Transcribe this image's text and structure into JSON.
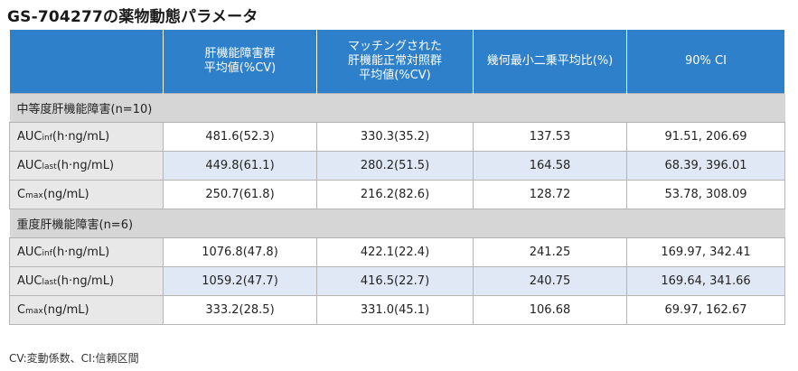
{
  "title": "GS-704277の薬物動態パラメータ",
  "headers": {
    "col2": [
      "肝機能障害群",
      "平均値(%CV)"
    ],
    "col3": [
      "マッチングされた",
      "肝機能正常対照群",
      "平均値(%CV)"
    ],
    "col4": [
      "幾何最小二乗平均比(%)"
    ],
    "col5": [
      "90% CI"
    ]
  },
  "groups": [
    {
      "label": "中等度肝機能障害(n=10)",
      "rows": [
        {
          "param": "AUC",
          "sub": "inf",
          "unit": "(h·ng/mL)",
          "impaired": "481.6(52.3)",
          "control": "330.3(35.2)",
          "ratio": "137.53",
          "ci": "91.51, 206.69"
        },
        {
          "param": "AUC",
          "sub": "last",
          "unit": "(h·ng/mL)",
          "impaired": "449.8(61.1)",
          "control": "280.2(51.5)",
          "ratio": "164.58",
          "ci": "68.39, 396.01"
        },
        {
          "param": "C",
          "sub": "max",
          "unit": "(ng/mL)",
          "impaired": "250.7(61.8)",
          "control": "216.2(82.6)",
          "ratio": "128.72",
          "ci": "53.78, 308.09"
        }
      ]
    },
    {
      "label": "重度肝機能障害(n=6)",
      "rows": [
        {
          "param": "AUC",
          "sub": "inf",
          "unit": "(h·ng/mL)",
          "impaired": "1076.8(47.8)",
          "control": "422.1(22.4)",
          "ratio": "241.25",
          "ci": "169.97, 342.41"
        },
        {
          "param": "AUC",
          "sub": "last",
          "unit": "(h·ng/mL)",
          "impaired": "1059.2(47.7)",
          "control": "416.5(22.7)",
          "ratio": "240.75",
          "ci": "169.64, 341.66"
        },
        {
          "param": "C",
          "sub": "max",
          "unit": "(ng/mL)",
          "impaired": "333.2(28.5)",
          "control": "331.0(45.1)",
          "ratio": "106.68",
          "ci": "69.97, 162.67"
        }
      ]
    }
  ],
  "footnote": "CV:変動係数、CI:信頼区間",
  "colors": {
    "header": "#2d80c9",
    "group": "#d6d6d6",
    "highlight": "#e1e8f5"
  }
}
